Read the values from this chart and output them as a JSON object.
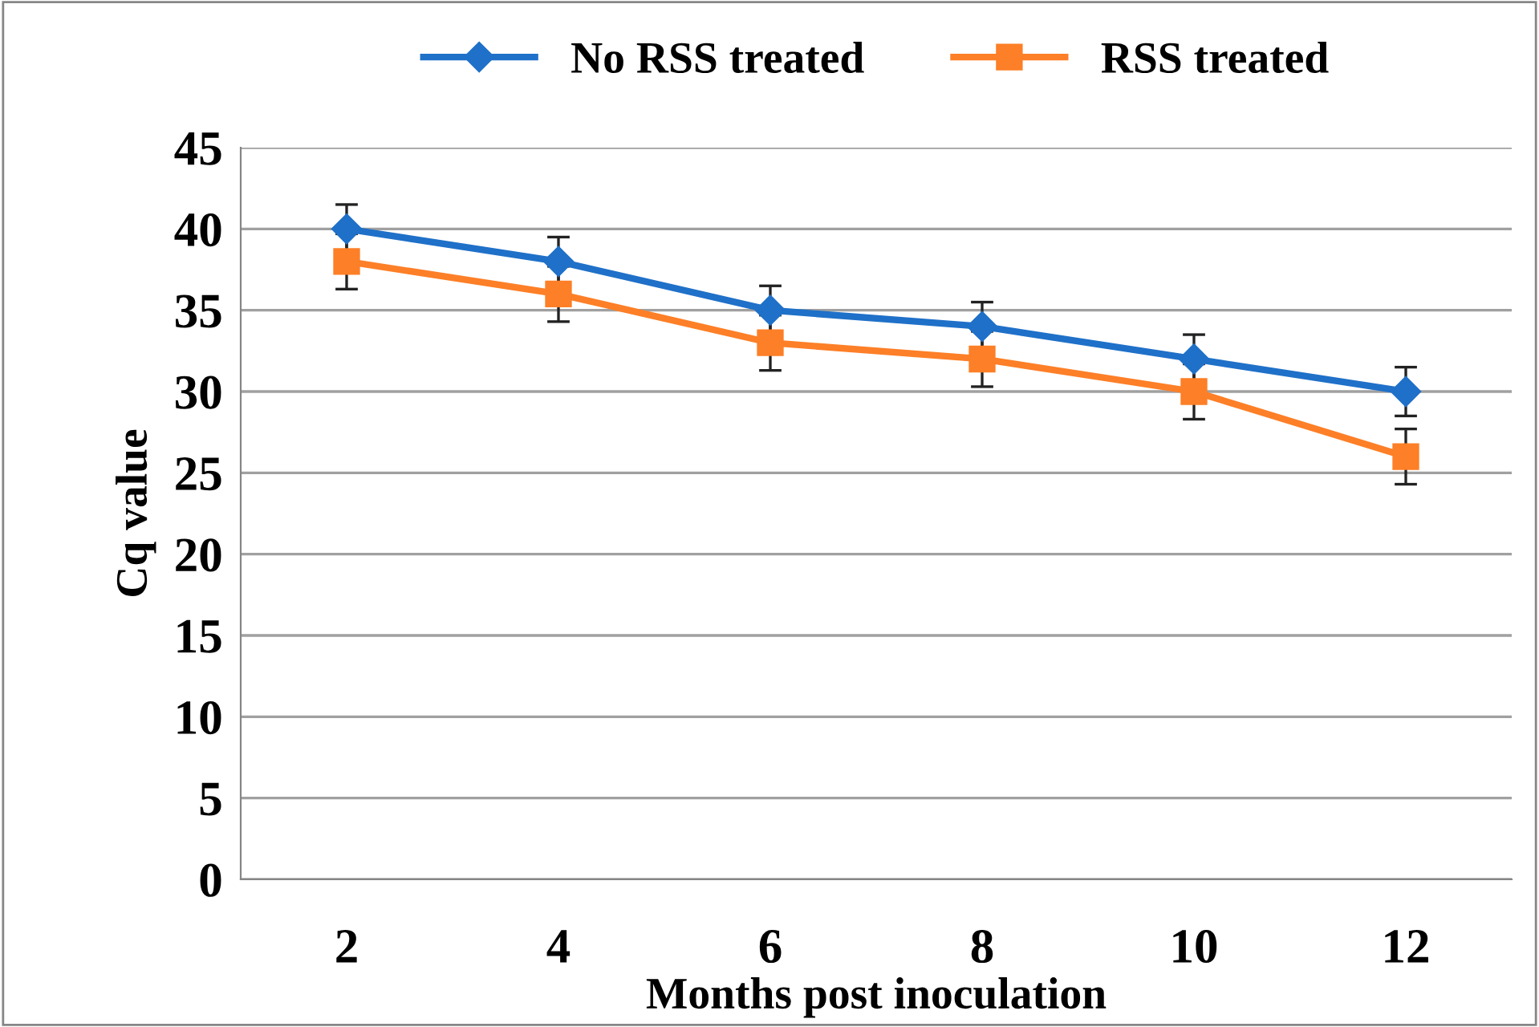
{
  "chart_data": {
    "type": "line",
    "xlabel": "Months post inoculation",
    "ylabel": "Cq value",
    "categories": [
      "2",
      "4",
      "6",
      "8",
      "10",
      "12"
    ],
    "series": [
      {
        "name": "No RSS treated",
        "color": "#1f70c8",
        "marker": "diamond",
        "values": [
          40,
          38,
          35,
          34,
          32,
          30
        ],
        "errors": [
          1.5,
          1.5,
          1.5,
          1.5,
          1.5,
          1.5
        ]
      },
      {
        "name": "RSS treated",
        "color": "#fd7f27",
        "marker": "square",
        "values": [
          38,
          36,
          33,
          32,
          30,
          26
        ],
        "errors": [
          1.7,
          1.7,
          1.7,
          1.7,
          1.7,
          1.7
        ]
      }
    ],
    "ylim": [
      0,
      45
    ],
    "yticks": [
      0,
      5,
      10,
      15,
      20,
      25,
      30,
      35,
      40,
      45
    ],
    "grid": "y",
    "legend": "top"
  }
}
